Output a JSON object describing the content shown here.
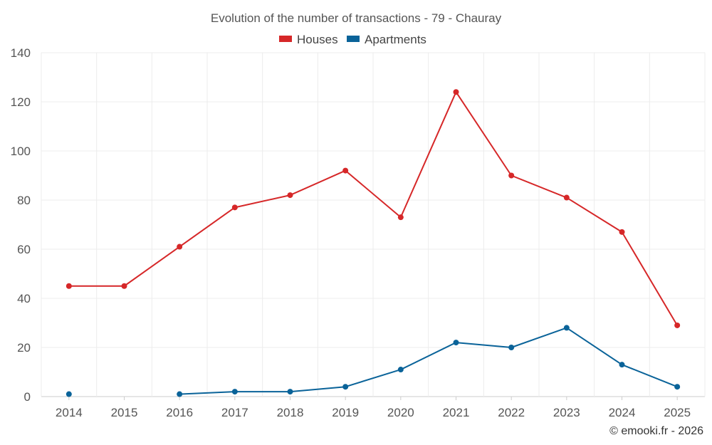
{
  "chart_data": {
    "type": "line",
    "title": "Evolution of the number of transactions - 79 - Chauray",
    "categories": [
      "2014",
      "2015",
      "2016",
      "2017",
      "2018",
      "2019",
      "2020",
      "2021",
      "2022",
      "2023",
      "2024",
      "2025"
    ],
    "ylim": [
      0,
      140
    ],
    "yticks": [
      0,
      20,
      40,
      60,
      80,
      100,
      120,
      140
    ],
    "grid": true,
    "legend_position": "top-center",
    "series": [
      {
        "name": "Houses",
        "color": "#d62728",
        "values": [
          45,
          45,
          61,
          77,
          82,
          92,
          73,
          124,
          90,
          81,
          67,
          29
        ]
      },
      {
        "name": "Apartments",
        "color": "#0a6399",
        "values": [
          1,
          null,
          1,
          2,
          2,
          4,
          11,
          22,
          20,
          28,
          13,
          4
        ]
      }
    ]
  },
  "footer": {
    "credit": "© emooki.fr - 2026"
  }
}
